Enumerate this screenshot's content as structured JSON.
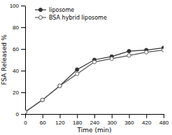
{
  "chart_data": {
    "type": "line",
    "xlabel": "Time (min)",
    "ylabel": "FSA Released %",
    "x": [
      0,
      60,
      120,
      180,
      240,
      300,
      360,
      420,
      480
    ],
    "series": [
      {
        "name": "liposome",
        "color": "#333333",
        "marker": "filled-circle",
        "values": [
          2,
          13,
          26,
          41,
          50,
          53,
          58,
          59,
          61
        ]
      },
      {
        "name": "BSA hybrid liposome",
        "color": "#555555",
        "marker": "open-circle",
        "values": [
          2,
          13,
          26,
          37,
          48,
          51,
          54,
          57,
          59
        ]
      }
    ],
    "xlim": [
      0,
      480
    ],
    "ylim": [
      0,
      100
    ],
    "xticks": [
      0,
      60,
      120,
      180,
      240,
      300,
      360,
      420,
      480
    ],
    "yticks": [
      0,
      20,
      40,
      60,
      80,
      100
    ],
    "grid": false,
    "legend": "upper left"
  }
}
